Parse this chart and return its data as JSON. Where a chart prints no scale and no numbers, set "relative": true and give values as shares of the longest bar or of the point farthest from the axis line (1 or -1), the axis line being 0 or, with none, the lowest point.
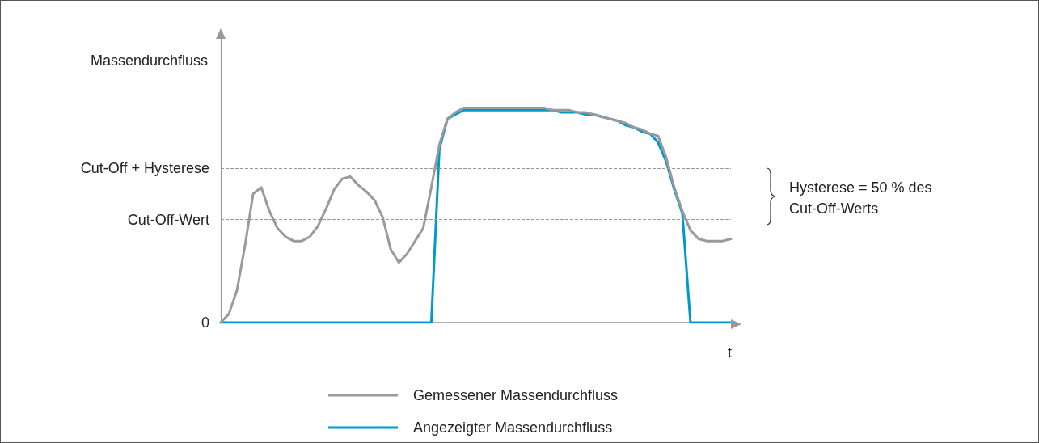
{
  "chart_data": {
    "type": "line",
    "xlabel": "t",
    "ylabel": "Massendurchfluss",
    "relative": true,
    "categories": [
      null,
      null,
      null,
      null,
      null,
      null,
      null,
      null,
      null,
      null,
      null,
      null,
      null,
      null,
      null,
      null,
      null,
      null,
      null,
      null,
      null,
      null,
      null,
      null,
      null,
      null,
      null,
      null,
      null,
      null,
      null,
      null,
      null,
      null,
      null,
      null,
      null,
      null,
      null,
      null,
      null,
      null,
      null,
      null,
      null,
      null,
      null,
      null,
      null,
      null,
      null,
      null,
      null,
      null,
      null,
      null,
      null,
      null,
      null,
      null,
      null,
      null,
      null,
      null
    ],
    "series": [
      {
        "name": "Gemessener Massendurchfluss",
        "color": "#999a9e",
        "values": [
          0,
          0.04,
          0.15,
          0.36,
          0.6,
          0.63,
          0.52,
          0.44,
          0.4,
          0.38,
          0.38,
          0.4,
          0.45,
          0.53,
          0.62,
          0.67,
          0.68,
          0.64,
          0.61,
          0.57,
          0.49,
          0.34,
          0.28,
          0.32,
          0.38,
          0.44,
          0.63,
          0.83,
          0.95,
          0.98,
          1,
          1,
          1,
          1,
          1,
          1,
          1,
          1,
          1,
          1,
          1,
          0.99,
          0.99,
          0.99,
          0.98,
          0.98,
          0.97,
          0.96,
          0.95,
          0.94,
          0.93,
          0.91,
          0.9,
          0.88,
          0.87,
          0.77,
          0.63,
          0.52,
          0.43,
          0.39,
          0.38,
          0.38,
          0.38,
          0.39
        ]
      },
      {
        "name": "Angezeigter Massendurchfluss",
        "color": "#0099cc",
        "values": [
          0,
          0,
          0,
          0,
          0,
          0,
          0,
          0,
          0,
          0,
          0,
          0,
          0,
          0,
          0,
          0,
          0,
          0,
          0,
          0,
          0,
          0,
          0,
          0,
          0,
          0,
          0,
          0.81,
          0.95,
          0.97,
          0.99,
          0.99,
          0.99,
          0.99,
          0.99,
          0.99,
          0.99,
          0.99,
          0.99,
          0.99,
          0.99,
          0.99,
          0.98,
          0.98,
          0.98,
          0.97,
          0.97,
          0.96,
          0.95,
          0.94,
          0.92,
          0.91,
          0.89,
          0.88,
          0.84,
          0.75,
          0.62,
          0.51,
          0,
          0,
          0,
          0,
          0,
          0
        ]
      }
    ],
    "ref_lines": [
      {
        "axis": "y",
        "value": 0.48,
        "label": "Cut-Off-Wert",
        "color": "#999999",
        "line_style": "dashed"
      },
      {
        "axis": "y",
        "value": 0.72,
        "label": "Cut-Off + Hysterese",
        "color": "#999999",
        "line_style": "dashed"
      }
    ],
    "annotations": [
      "0",
      "Hysterese = 50 % des\nCut-Off-Werts"
    ],
    "grid": false,
    "legend": "bottom",
    "marker": "none",
    "line_style": "solid"
  }
}
